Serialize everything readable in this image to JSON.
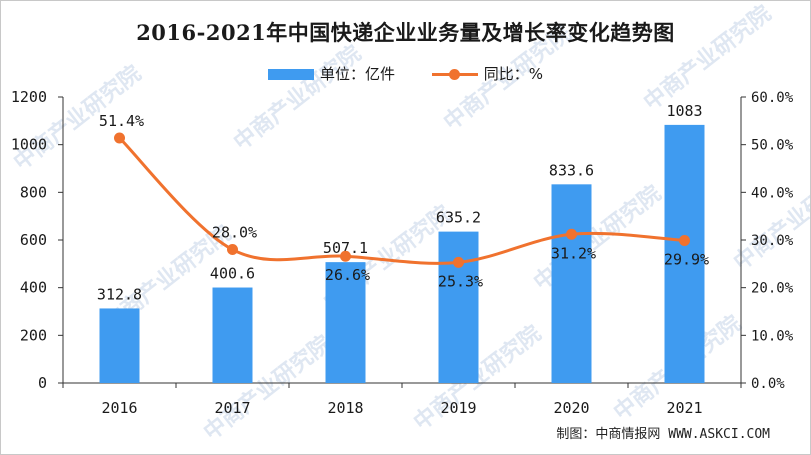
{
  "chart_data": {
    "type": "bar",
    "title": "2016-2021年中国快递企业业务量及增长率变化趋势图",
    "categories": [
      "2016",
      "2017",
      "2018",
      "2019",
      "2020",
      "2021"
    ],
    "series": [
      {
        "name": "单位：亿件",
        "type": "bar",
        "axis": "left",
        "values": [
          312.8,
          400.6,
          507.1,
          635.2,
          833.6,
          1083
        ],
        "labels": [
          "312.8",
          "400.6",
          "507.1",
          "635.2",
          "833.6",
          "1083"
        ],
        "color": "#3f9bf0"
      },
      {
        "name": "同比：%",
        "type": "line",
        "axis": "right",
        "values": [
          51.4,
          28.0,
          26.6,
          25.3,
          31.2,
          29.9
        ],
        "labels": [
          "51.4%",
          "28.0%",
          "26.6%",
          "25.3%",
          "31.2%",
          "29.9%"
        ],
        "color": "#f0722e"
      }
    ],
    "y_left": {
      "min": 0,
      "max": 1200,
      "ticks": [
        0,
        200,
        400,
        600,
        800,
        1000,
        1200
      ],
      "tick_labels": [
        "0",
        "200",
        "400",
        "600",
        "800",
        "1000",
        "1200"
      ]
    },
    "y_right": {
      "min": 0,
      "max": 60,
      "ticks": [
        0,
        10,
        20,
        30,
        40,
        50,
        60
      ],
      "tick_labels": [
        "0.0%",
        "10.0%",
        "20.0%",
        "30.0%",
        "40.0%",
        "50.0%",
        "60.0%"
      ]
    },
    "grid": false,
    "legend_position": "top-center"
  },
  "watermark": "中商产业研究院",
  "source_note": "制图：中商情报网 WWW.ASKCI.COM"
}
